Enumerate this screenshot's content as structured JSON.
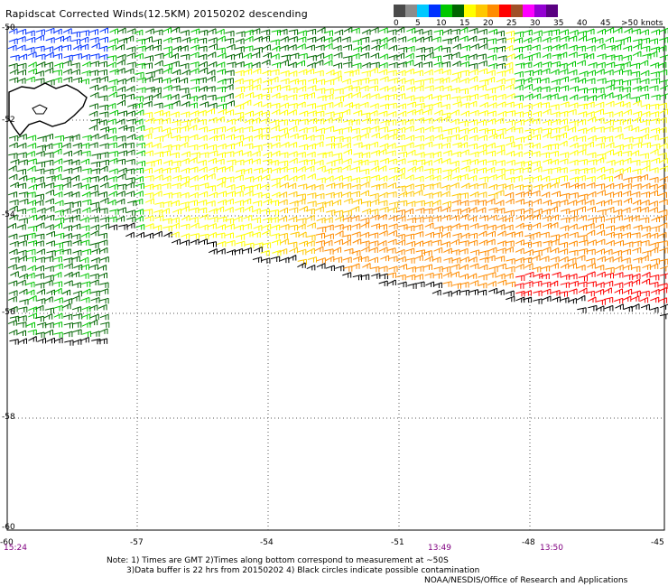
{
  "title": "Rapidscat Corrected Winds(12.5KM) 20150202 descending",
  "legend": {
    "colors": [
      "#4a4a4a",
      "#8c8c8c",
      "#00c8ff",
      "#0032ff",
      "#00c800",
      "#006400",
      "#ffff00",
      "#ffc800",
      "#ff8c00",
      "#ff0000",
      "#a05028",
      "#ff00ff",
      "#9400d3",
      "#5a0082"
    ],
    "labels": [
      "0",
      "5",
      "10",
      "15",
      "20",
      "25",
      "30",
      "35",
      "40",
      "45",
      ">50 knots"
    ]
  },
  "axes": {
    "x_ticks": [
      "-60",
      "-57",
      "-54",
      "-51",
      "-48",
      "-45"
    ],
    "y_ticks": [
      "-50",
      "-52",
      "-54",
      "-56",
      "-58",
      "-60"
    ],
    "times": [
      "15:24",
      "13:49",
      "13:50"
    ]
  },
  "notes": {
    "line1": "Note: 1) Times are GMT 2)Times along bottom correspond to measurement at ~50S",
    "line2": "3)Data buffer is 22 hrs from 20150202 4) Black circles indicate possible contamination"
  },
  "credit": "NOAA/NESDIS/Office of Research and Applications"
}
